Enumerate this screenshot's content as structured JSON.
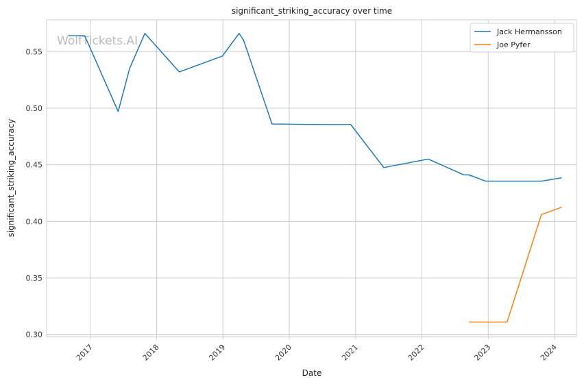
{
  "chart_data": {
    "type": "line",
    "title": "significant_striking_accuracy over time",
    "xlabel": "Date",
    "ylabel": "significant_striking_accuracy",
    "watermark": "WolfTickets.AI",
    "x_ticks": [
      "2017",
      "2018",
      "2019",
      "2020",
      "2021",
      "2022",
      "2023",
      "2024"
    ],
    "y_ticks": [
      "0.30",
      "0.35",
      "0.40",
      "0.45",
      "0.50",
      "0.55"
    ],
    "xlim": [
      "2016-05-05",
      "2024-05-01"
    ],
    "ylim": [
      0.298,
      0.578
    ],
    "grid": true,
    "legend_position": "top-right",
    "series": [
      {
        "name": "Jack Hermansson",
        "color": "#1f77b4",
        "points": [
          [
            "2016-09-01",
            0.564
          ],
          [
            "2016-12-01",
            0.564
          ],
          [
            "2017-06-03",
            0.497
          ],
          [
            "2017-08-05",
            0.535
          ],
          [
            "2017-10-28",
            0.566
          ],
          [
            "2018-05-06",
            0.532
          ],
          [
            "2018-12-29",
            0.546
          ],
          [
            "2019-03-31",
            0.566
          ],
          [
            "2019-04-25",
            0.56
          ],
          [
            "2019-09-28",
            0.486
          ],
          [
            "2020-07-19",
            0.4855
          ],
          [
            "2020-12-05",
            0.4855
          ],
          [
            "2021-06-05",
            0.4475
          ],
          [
            "2022-02-05",
            0.455
          ],
          [
            "2022-08-20",
            0.441
          ],
          [
            "2022-09-17",
            0.441
          ],
          [
            "2022-12-17",
            0.4355
          ],
          [
            "2023-10-21",
            0.4355
          ],
          [
            "2024-02-10",
            0.4385
          ]
        ]
      },
      {
        "name": "Joe Pyfer",
        "color": "#ff7f0e",
        "points": [
          [
            "2022-09-17",
            0.311
          ],
          [
            "2023-04-15",
            0.311
          ],
          [
            "2023-10-21",
            0.406
          ],
          [
            "2024-02-10",
            0.4125
          ]
        ]
      }
    ]
  }
}
